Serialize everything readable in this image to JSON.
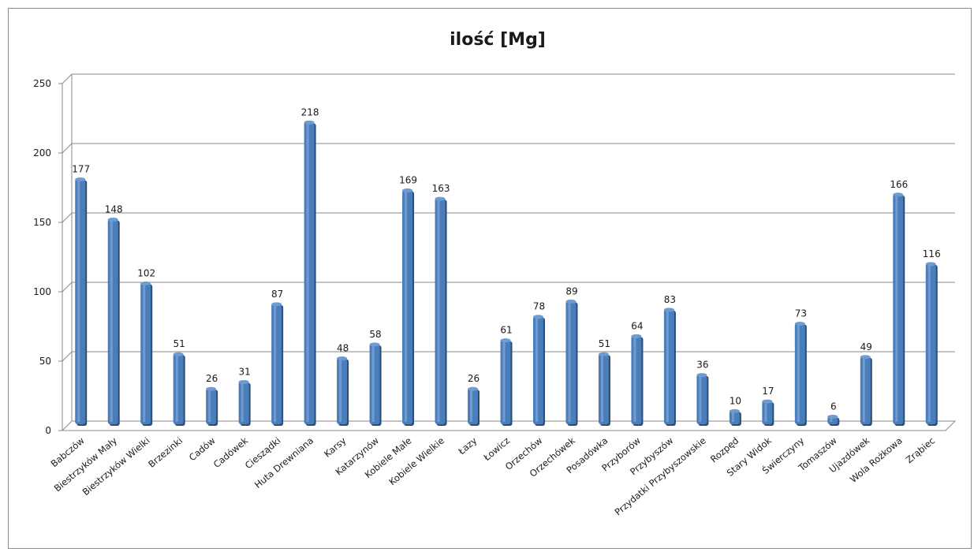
{
  "chart_data": {
    "type": "bar",
    "title": "ilość [Mg]",
    "xlabel": "",
    "ylabel": "",
    "ylim": [
      0,
      250
    ],
    "yticks": [
      0,
      50,
      100,
      150,
      200,
      250
    ],
    "grid": true,
    "legend": "none",
    "bar_color": "#4a7ebb",
    "categories": [
      "Babczów",
      "Biestrzyków Mały",
      "Biestrzyków Wielki",
      "Brzezinki",
      "Cadów",
      "Cadówek",
      "Ciesządki",
      "Huta Drewniana",
      "Karsy",
      "Katarzynów",
      "Kobiele Małe",
      "Kobiele Wielkie",
      "Łazy",
      "Łowicz",
      "Orzechów",
      "Orzechówek",
      "Posadówka",
      "Przyborów",
      "Przybyszów",
      "Przydatki Przybyszowskie",
      "Rozpęd",
      "Stary Widok",
      "Świerczyny",
      "Tomaszów",
      "Ujazdówek",
      "Wola Rożkowa",
      "Zrąbiec"
    ],
    "values": [
      177,
      148,
      102,
      51,
      26,
      31,
      87,
      218,
      48,
      58,
      169,
      163,
      26,
      61,
      78,
      89,
      51,
      64,
      83,
      36,
      10,
      17,
      73,
      6,
      49,
      166,
      116
    ]
  }
}
